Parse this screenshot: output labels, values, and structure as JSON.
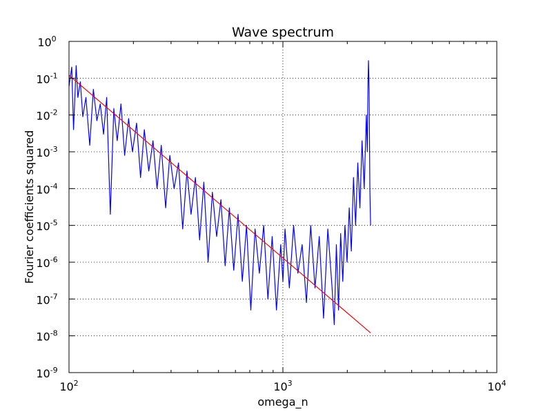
{
  "chart_data": {
    "type": "line",
    "title": "Wave spectrum",
    "xlabel": "omega_n",
    "ylabel": "Fourier coefficients squared",
    "xscale": "log",
    "yscale": "log",
    "xlim": [
      100,
      10000
    ],
    "ylim": [
      1e-09,
      1
    ],
    "grid": true,
    "x_ticks": [
      {
        "base": "10",
        "exp": "2",
        "value": 100
      },
      {
        "base": "10",
        "exp": "3",
        "value": 1000
      },
      {
        "base": "10",
        "exp": "4",
        "value": 10000
      }
    ],
    "y_ticks": [
      {
        "base": "10",
        "exp": "0",
        "value": 1
      },
      {
        "base": "10",
        "exp": "-1",
        "value": 0.1
      },
      {
        "base": "10",
        "exp": "-2",
        "value": 0.01
      },
      {
        "base": "10",
        "exp": "-3",
        "value": 0.001
      },
      {
        "base": "10",
        "exp": "-4",
        "value": 0.0001
      },
      {
        "base": "10",
        "exp": "-5",
        "value": 1e-05
      },
      {
        "base": "10",
        "exp": "-6",
        "value": 1e-06
      },
      {
        "base": "10",
        "exp": "-7",
        "value": 1e-07
      },
      {
        "base": "10",
        "exp": "-8",
        "value": 1e-08
      },
      {
        "base": "10",
        "exp": "-9",
        "value": 1e-09
      }
    ],
    "series": [
      {
        "color": "#0000ff",
        "x": [
          100,
          103,
          105,
          108,
          110,
          113,
          116,
          120,
          125,
          130,
          135,
          140,
          145,
          150,
          156,
          162,
          168,
          175,
          182,
          190,
          198,
          207,
          216,
          225,
          236,
          247,
          258,
          270,
          283,
          296,
          310,
          325,
          340,
          356,
          372,
          390,
          408,
          427,
          447,
          468,
          490,
          513,
          537,
          562,
          589,
          617,
          646,
          676,
          708,
          741,
          776,
          813,
          851,
          891,
          933,
          977,
          1000,
          1023,
          1072,
          1122,
          1175,
          1230,
          1288,
          1349,
          1413,
          1479,
          1549,
          1622,
          1698,
          1738,
          1778,
          1820,
          1862,
          1905,
          1950,
          1995,
          2042,
          2089,
          2138,
          2188,
          2239,
          2291,
          2344,
          2399,
          2455,
          2480,
          2500,
          2512,
          2530,
          2550,
          2570
        ],
        "y": [
          0.06,
          0.2,
          0.004,
          0.22,
          0.03,
          0.08,
          0.009,
          0.03,
          0.0015,
          0.05,
          0.007,
          0.02,
          0.003,
          0.03,
          2e-05,
          0.015,
          0.002,
          0.02,
          0.0008,
          0.008,
          0.001,
          0.006,
          0.0002,
          0.004,
          0.0003,
          0.002,
          0.0001,
          0.0015,
          3e-05,
          0.0008,
          0.0001,
          0.0005,
          8e-06,
          0.0003,
          2e-05,
          0.0002,
          4e-06,
          0.00015,
          1e-06,
          8e-05,
          5e-06,
          5e-05,
          8e-07,
          3e-05,
          6e-07,
          2e-05,
          3e-07,
          1e-05,
          5e-08,
          8e-06,
          5e-07,
          1e-05,
          1e-07,
          5e-06,
          5e-08,
          3e-06,
          3e-07,
          8e-06,
          2e-07,
          1e-05,
          5e-07,
          3e-06,
          8e-08,
          1e-05,
          2e-07,
          5e-06,
          3e-08,
          8e-06,
          2e-07,
          2e-08,
          3e-06,
          5e-08,
          6e-06,
          3e-07,
          1e-05,
          1e-06,
          3e-05,
          2e-06,
          0.0002,
          1e-05,
          0.0005,
          3e-05,
          0.002,
          0.0001,
          0.01,
          0.001,
          0.08,
          0.3,
          0.05,
          0.0001,
          1e-05
        ]
      },
      {
        "color": "#ff0000",
        "x": [
          100,
          2570
        ],
        "y": [
          0.12,
          1.2e-08
        ]
      }
    ]
  }
}
